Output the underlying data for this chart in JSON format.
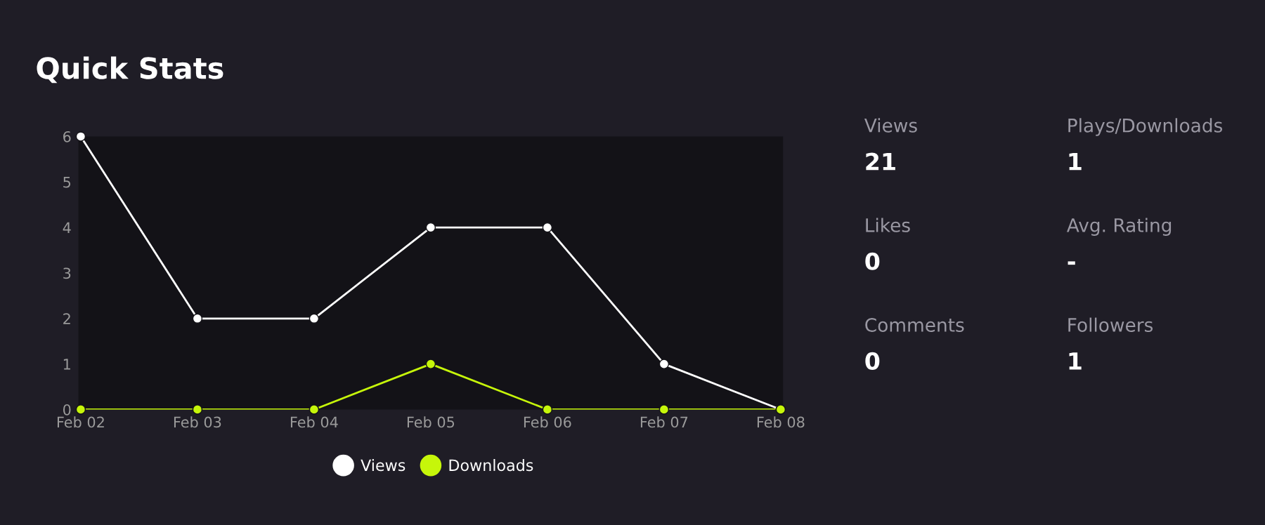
{
  "chart_data": [
    {
      "type": "line",
      "title": "Quick Stats",
      "categories": [
        "Feb 02",
        "Feb 03",
        "Feb 04",
        "Feb 05",
        "Feb 06",
        "Feb 07",
        "Feb 08"
      ],
      "series": [
        {
          "name": "Views",
          "color": "#ffffff",
          "values": [
            6,
            2,
            2,
            4,
            4,
            1,
            0
          ]
        },
        {
          "name": "Downloads",
          "color": "#c6f60a",
          "values": [
            0,
            0,
            0,
            1,
            0,
            0,
            0
          ]
        }
      ],
      "ylim": [
        0,
        6
      ],
      "yticks": [
        0,
        1,
        2,
        3,
        4,
        5,
        6
      ],
      "grid": false,
      "legend": "bottom",
      "marker": "circle",
      "line_style": "solid"
    },
    {
      "type": "other",
      "annotations": [
        "Views",
        "21",
        "Plays/Downloads",
        "1",
        "Likes",
        "0",
        "Avg. Rating",
        "-",
        "Comments",
        "0",
        "Followers",
        "1"
      ]
    }
  ]
}
